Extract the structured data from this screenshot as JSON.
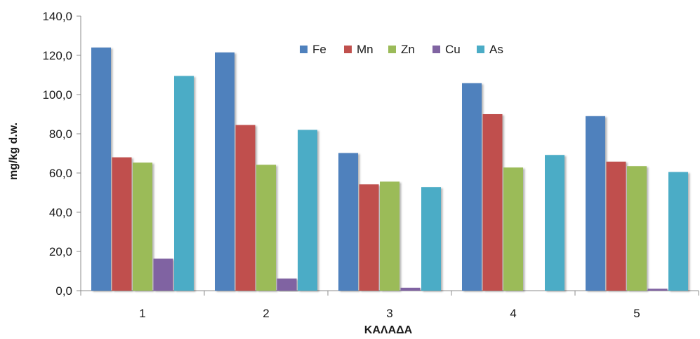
{
  "chart_data": {
    "type": "bar",
    "title": "",
    "xlabel": "ΚΑΛΑΔΑ",
    "ylabel": "mg/kg d.w.",
    "ylim": [
      0,
      140
    ],
    "ytick_step": 20,
    "ytick_labels": [
      "0,0",
      "20,0",
      "40,0",
      "60,0",
      "80,0",
      "100,0",
      "120,0",
      "140,0"
    ],
    "categories": [
      "1",
      "2",
      "3",
      "4",
      "5"
    ],
    "grid": false,
    "legend_position": "top-center",
    "series": [
      {
        "name": "Fe",
        "color": "#4f81bd",
        "values": [
          124.0,
          121.5,
          70.2,
          105.8,
          89.0
        ]
      },
      {
        "name": "Mn",
        "color": "#c0504d",
        "values": [
          68.0,
          84.5,
          54.2,
          90.0,
          65.8
        ]
      },
      {
        "name": "Zn",
        "color": "#9bbb59",
        "values": [
          65.3,
          64.2,
          55.6,
          62.8,
          63.5
        ]
      },
      {
        "name": "Cu",
        "color": "#8064a2",
        "values": [
          16.3,
          6.2,
          1.5,
          0,
          1.0
        ]
      },
      {
        "name": "As",
        "color": "#4bacc6",
        "values": [
          109.5,
          82.0,
          52.8,
          69.2,
          60.5
        ]
      }
    ]
  }
}
